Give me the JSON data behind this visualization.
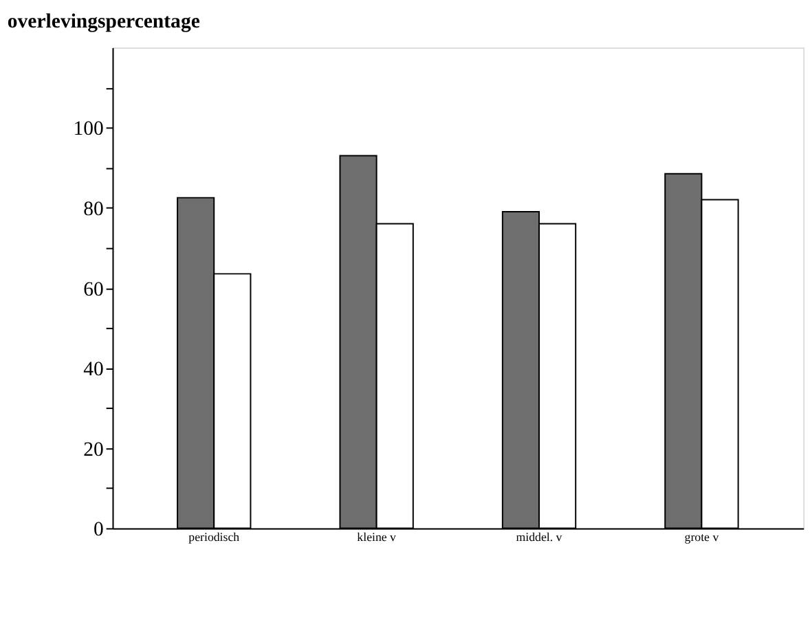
{
  "chart_data": {
    "type": "bar",
    "title": "overlevingspercentage",
    "categories": [
      "periodisch",
      "kleine v",
      "middel. v",
      "grote v"
    ],
    "series": [
      {
        "color": "#6e6e6e",
        "values": [
          82.5,
          93,
          79,
          88.5
        ]
      },
      {
        "color": "#ffffff",
        "values": [
          63.5,
          76,
          76,
          82
        ]
      }
    ],
    "ylim": [
      0,
      120
    ],
    "yticks": [
      0,
      {
        "value": 10,
        "label": null
      },
      20,
      {
        "value": 30,
        "label": null
      },
      40,
      {
        "value": 50,
        "label": null
      },
      60,
      {
        "value": 70,
        "label": null
      },
      80,
      {
        "value": 90,
        "label": null
      },
      100,
      {
        "value": 110,
        "label": null
      }
    ],
    "grid": false,
    "legend": false
  }
}
